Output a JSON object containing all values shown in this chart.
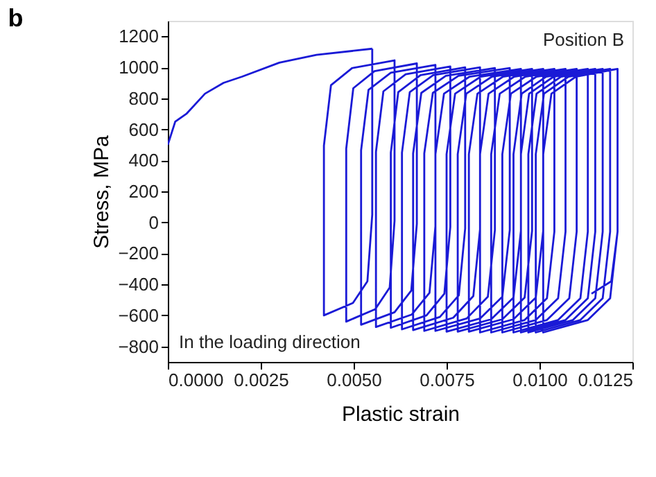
{
  "chart_data": {
    "type": "line",
    "title": "b",
    "xlabel": "Plastic strain",
    "ylabel": "Stress, MPa",
    "xlim": [
      0,
      0.0125
    ],
    "xticks": [
      {
        "value": 0,
        "label": "0.0000"
      },
      {
        "value": 0.0025,
        "label": "0.0025"
      },
      {
        "value": 0.005,
        "label": "0.0050"
      },
      {
        "value": 0.0075,
        "label": "0.0075"
      },
      {
        "value": 0.01,
        "label": "0.0100"
      },
      {
        "value": 0.0125,
        "label": "0.0125"
      }
    ],
    "ylim": [
      -900,
      1300
    ],
    "yticks": [
      -800,
      -600,
      -400,
      -200,
      0,
      200,
      400,
      600,
      800,
      1000,
      1200
    ],
    "grid": false,
    "legend": false,
    "marker": "none",
    "line_style": "solid",
    "annotations": [
      "Position B",
      "In the loading direction"
    ],
    "series": [
      {
        "color": "#1a1ad6",
        "x": [
          0,
          0.0002,
          0.0005,
          0.001,
          0.0015,
          0.002,
          0.003,
          0.004,
          0.0055
        ],
        "values": [
          500,
          650,
          700,
          830,
          900,
          940,
          1030,
          1080,
          1120
        ]
      },
      {
        "color": "#1a1ad6",
        "x": [
          0.0055,
          0.0055,
          0.00537,
          0.00498,
          0.0042,
          0.0042,
          0.00439,
          0.00496,
          0.0061,
          0.0061,
          0.00597,
          0.00558,
          0.0048,
          0.0048,
          0.00499,
          0.00556,
          0.0067,
          0.0067,
          0.00655,
          0.0061,
          0.0052,
          0.0052,
          0.0054,
          0.006,
          0.0072,
          0.0072,
          0.00704,
          0.00656,
          0.0056,
          0.0056,
          0.0058,
          0.0064,
          0.0076,
          0.0076,
          0.00744,
          0.00696,
          0.006,
          0.006,
          0.0062,
          0.0068,
          0.008,
          0.008,
          0.00783,
          0.00732,
          0.0063,
          0.0063,
          0.00651,
          0.00714,
          0.0084,
          0.0084,
          0.00822,
          0.00768,
          0.0066,
          0.0066,
          0.00682,
          0.00748,
          0.0088,
          0.0088,
          0.00861,
          0.00804,
          0.0069,
          0.0069,
          0.00713,
          0.00782,
          0.0092,
          0.0092,
          0.009,
          0.0084,
          0.0072,
          0.0072,
          0.00743,
          0.00812,
          0.0095,
          0.0095,
          0.0093,
          0.0087,
          0.0075,
          0.0075,
          0.00773,
          0.00842,
          0.0098,
          0.0098,
          0.0096,
          0.009,
          0.0078,
          0.0078,
          0.00803,
          0.00872,
          0.0101,
          0.0101,
          0.0099,
          0.0093,
          0.0081,
          0.0081,
          0.00833,
          0.00902,
          0.0104,
          0.0104,
          0.0102,
          0.0096,
          0.0084,
          0.0084,
          0.00863,
          0.00932,
          0.0107,
          0.0107,
          0.0105,
          0.0099,
          0.0087,
          0.0087,
          0.00893,
          0.00962,
          0.011,
          0.011,
          0.0108,
          0.0102,
          0.009,
          0.009,
          0.00923,
          0.00992,
          0.0113,
          0.0113,
          0.0111,
          0.0105,
          0.0093,
          0.0093,
          0.00952,
          0.01018,
          0.0115,
          0.0115,
          0.0113,
          0.0107,
          0.0095,
          0.0095,
          0.00972,
          0.01038,
          0.0117,
          0.0117,
          0.0115,
          0.0109,
          0.0097,
          0.0097,
          0.00992,
          0.01058,
          0.0119,
          0.0119,
          0.0117,
          0.0111,
          0.0099,
          0.0099,
          0.01012,
          0.01078,
          0.0121,
          0.0121,
          0.0119,
          0.0113,
          0.0101,
          0.0101,
          0.01032,
          0.01098,
          0.0121,
          0.0121,
          0.01193,
          0.0114
        ],
        "values": [
          1120,
          50,
          -380,
          -520,
          -600,
          495,
          885,
          995,
          1045,
          10,
          -420,
          -560,
          -640,
          475,
          865,
          975,
          1025,
          -10,
          -440,
          -580,
          -660,
          465,
          855,
          965,
          1015,
          -25,
          -455,
          -595,
          -675,
          455,
          845,
          955,
          1005,
          -30,
          -460,
          -600,
          -680,
          450,
          840,
          950,
          1000,
          -40,
          -470,
          -610,
          -690,
          450,
          840,
          950,
          1000,
          -45,
          -475,
          -615,
          -695,
          445,
          835,
          945,
          995,
          -50,
          -480,
          -620,
          -700,
          445,
          835,
          945,
          995,
          -50,
          -480,
          -620,
          -700,
          440,
          830,
          940,
          990,
          -55,
          -485,
          -625,
          -705,
          440,
          830,
          940,
          990,
          -55,
          -485,
          -625,
          -705,
          440,
          830,
          940,
          990,
          -55,
          -485,
          -625,
          -705,
          440,
          830,
          940,
          990,
          -60,
          -490,
          -630,
          -710,
          440,
          830,
          940,
          990,
          -60,
          -490,
          -630,
          -710,
          440,
          830,
          940,
          990,
          -60,
          -490,
          -630,
          -710,
          440,
          830,
          940,
          990,
          -60,
          -490,
          -630,
          -710,
          440,
          830,
          940,
          990,
          -60,
          -490,
          -630,
          -710,
          440,
          830,
          940,
          990,
          -60,
          -490,
          -630,
          -710,
          440,
          830,
          940,
          990,
          -60,
          -490,
          -630,
          -710,
          440,
          830,
          940,
          990,
          -60,
          -490,
          -630,
          -710,
          440,
          830,
          940,
          990,
          -60,
          -380,
          -460
        ]
      }
    ]
  }
}
